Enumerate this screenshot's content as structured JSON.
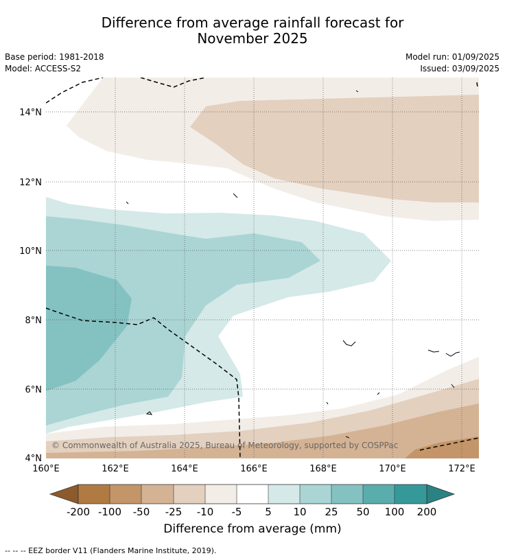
{
  "title_line1": "Difference from average rainfall forecast for",
  "title_line2": "November 2025",
  "base_period": "Base period: 1981-2018",
  "model": "Model: ACCESS-S2",
  "model_run": "Model run: 01/09/2025",
  "issued": "Issued: 03/09/2025",
  "copyright": "© Commonwealth of Australia 2025, Bureau of Meteorology, supported by COSPPac",
  "lat_labels": [
    "4°N",
    "6°N",
    "8°N",
    "10°N",
    "12°N",
    "14°N"
  ],
  "lon_labels": [
    "160°E",
    "162°E",
    "164°E",
    "166°E",
    "168°E",
    "170°E",
    "172°E"
  ],
  "colorbar": {
    "title": "Difference from average (mm)",
    "ticks": [
      "-200",
      "-100",
      "-50",
      "-25",
      "-10",
      "-5",
      "5",
      "10",
      "25",
      "50",
      "100",
      "200"
    ],
    "colors": [
      "#8d5a2b",
      "#b07a43",
      "#c39568",
      "#d4b394",
      "#e3d0be",
      "#f3ede8",
      "#ffffff",
      "#d4e9e8",
      "#aad5d4",
      "#84c2c1",
      "#5aadad",
      "#35999a",
      "#2b8283"
    ]
  },
  "legend_line": "--  --  -- EEZ border V11 (Flanders Marine Institute, 2019)."
}
